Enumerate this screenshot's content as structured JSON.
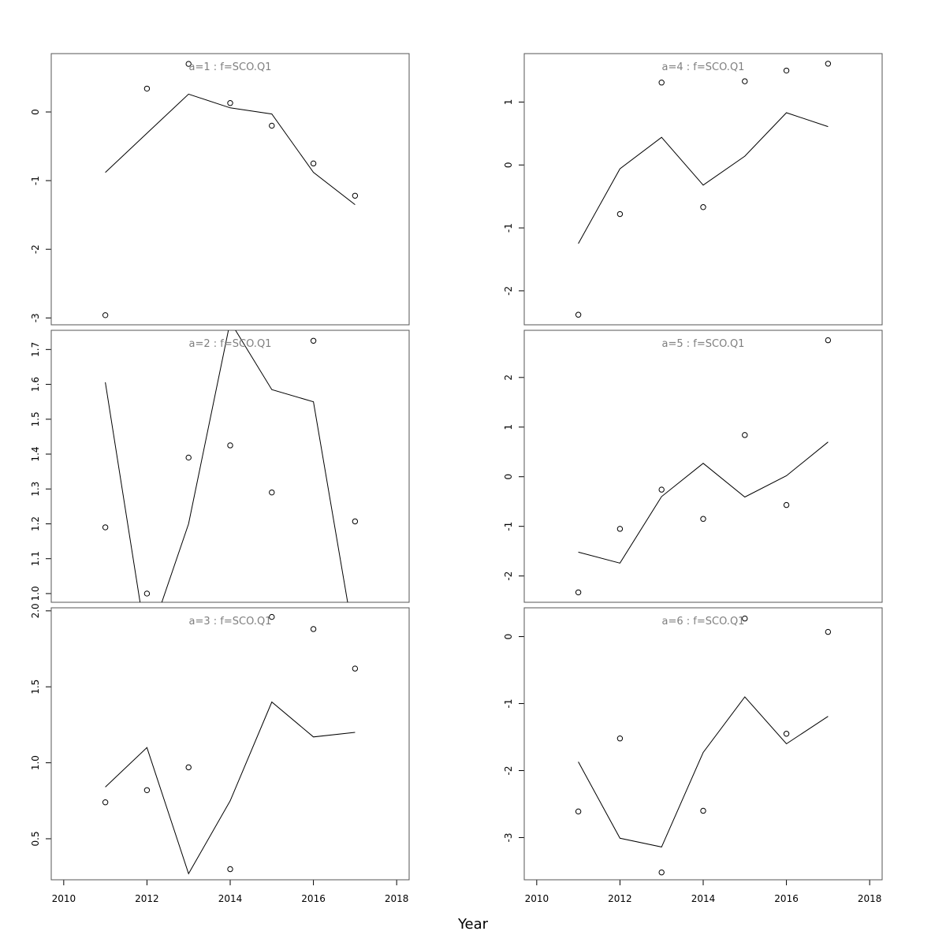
{
  "xlabel": "Year",
  "chart_data": [
    {
      "type": "line",
      "title": "a=1 : f=SCO.Q1",
      "x": [
        2011,
        2012,
        2013,
        2014,
        2015,
        2016,
        2017
      ],
      "series": [
        {
          "kind": "line",
          "values": [
            -0.88,
            -0.31,
            0.26,
            0.06,
            -0.03,
            -0.88,
            -1.35
          ]
        },
        {
          "kind": "points",
          "values": [
            -2.96,
            0.34,
            0.7,
            0.13,
            -0.2,
            -0.75,
            -1.22
          ]
        }
      ],
      "xlim": [
        2009.7,
        2018.3
      ],
      "ylim": [
        -3.1,
        0.85
      ],
      "yticks": [
        0,
        -1,
        -2,
        -3
      ],
      "ytick_labels": [
        "0",
        "-1",
        "-2",
        "-3"
      ]
    },
    {
      "type": "line",
      "title": "a=4 : f=SCO.Q1",
      "x": [
        2011,
        2012,
        2013,
        2014,
        2015,
        2016,
        2017
      ],
      "series": [
        {
          "kind": "line",
          "values": [
            -1.25,
            -0.06,
            0.44,
            -0.32,
            0.14,
            0.83,
            0.61
          ]
        },
        {
          "kind": "points",
          "values": [
            -2.38,
            -0.78,
            1.31,
            -0.67,
            1.33,
            1.5,
            1.61
          ]
        }
      ],
      "xlim": [
        2009.7,
        2018.3
      ],
      "ylim": [
        -2.54,
        1.77
      ],
      "yticks": [
        1,
        0,
        -1,
        -2
      ],
      "ytick_labels": [
        "1",
        "0",
        "-1",
        "-2"
      ]
    },
    {
      "type": "line",
      "title": "a=2 : f=SCO.Q1",
      "x": [
        2011,
        2012,
        2013,
        2014,
        2015,
        2016,
        2017
      ],
      "series": [
        {
          "kind": "line",
          "values": [
            1.606,
            0.85,
            1.2,
            1.78,
            1.585,
            1.55,
            0.85
          ]
        },
        {
          "kind": "points",
          "values": [
            1.19,
            1.0,
            1.39,
            1.425,
            1.29,
            1.725,
            1.207
          ]
        }
      ],
      "xlim": [
        2009.7,
        2018.3
      ],
      "ylim": [
        0.975,
        1.755
      ],
      "yticks": [
        1.0,
        1.1,
        1.2,
        1.3,
        1.4,
        1.5,
        1.6,
        1.7
      ],
      "ytick_labels": [
        "1.0",
        "1.1",
        "1.2",
        "1.3",
        "1.4",
        "1.5",
        "1.6",
        "1.7"
      ]
    },
    {
      "type": "line",
      "title": "a=5 : f=SCO.Q1",
      "x": [
        2011,
        2012,
        2013,
        2014,
        2015,
        2016,
        2017
      ],
      "series": [
        {
          "kind": "line",
          "values": [
            -1.52,
            -1.74,
            -0.4,
            0.27,
            -0.41,
            0.02,
            0.7
          ]
        },
        {
          "kind": "points",
          "values": [
            -2.33,
            -1.05,
            -0.26,
            -0.85,
            0.84,
            -0.57,
            2.75
          ]
        }
      ],
      "xlim": [
        2009.7,
        2018.3
      ],
      "ylim": [
        -2.53,
        2.95
      ],
      "yticks": [
        2,
        1,
        0,
        -1,
        -2
      ],
      "ytick_labels": [
        "2",
        "1",
        "0",
        "-1",
        "-2"
      ]
    },
    {
      "type": "line",
      "title": "a=3 : f=SCO.Q1",
      "x": [
        2011,
        2012,
        2013,
        2014,
        2015,
        2016,
        2017
      ],
      "series": [
        {
          "kind": "line",
          "values": [
            0.84,
            1.1,
            0.27,
            0.75,
            1.4,
            1.17,
            1.2
          ]
        },
        {
          "kind": "points",
          "values": [
            0.74,
            0.82,
            0.97,
            0.3,
            1.96,
            1.88,
            1.62
          ]
        }
      ],
      "xlim": [
        2009.7,
        2018.3
      ],
      "ylim": [
        0.23,
        2.02
      ],
      "yticks": [
        2.0,
        1.5,
        1.0,
        0.5
      ],
      "ytick_labels": [
        "2.0",
        "1.5",
        "1.0",
        "0.5"
      ],
      "xticks": [
        2010,
        2012,
        2014,
        2016,
        2018
      ],
      "xtick_labels": [
        "2010",
        "2012",
        "2014",
        "2016",
        "2018"
      ]
    },
    {
      "type": "line",
      "title": "a=6 : f=SCO.Q1",
      "x": [
        2011,
        2012,
        2013,
        2014,
        2015,
        2016,
        2017
      ],
      "series": [
        {
          "kind": "line",
          "values": [
            -1.87,
            -3.01,
            -3.14,
            -1.73,
            -0.9,
            -1.6,
            -1.19
          ]
        },
        {
          "kind": "points",
          "values": [
            -2.61,
            -1.52,
            -3.52,
            -2.6,
            0.27,
            -1.45,
            0.07
          ]
        }
      ],
      "xlim": [
        2009.7,
        2018.3
      ],
      "ylim": [
        -3.63,
        0.43
      ],
      "yticks": [
        0,
        -1,
        -2,
        -3
      ],
      "ytick_labels": [
        "0",
        "-1",
        "-2",
        "-3"
      ],
      "xticks": [
        2010,
        2012,
        2014,
        2016,
        2018
      ],
      "xtick_labels": [
        "2010",
        "2012",
        "2014",
        "2016",
        "2018"
      ]
    }
  ]
}
